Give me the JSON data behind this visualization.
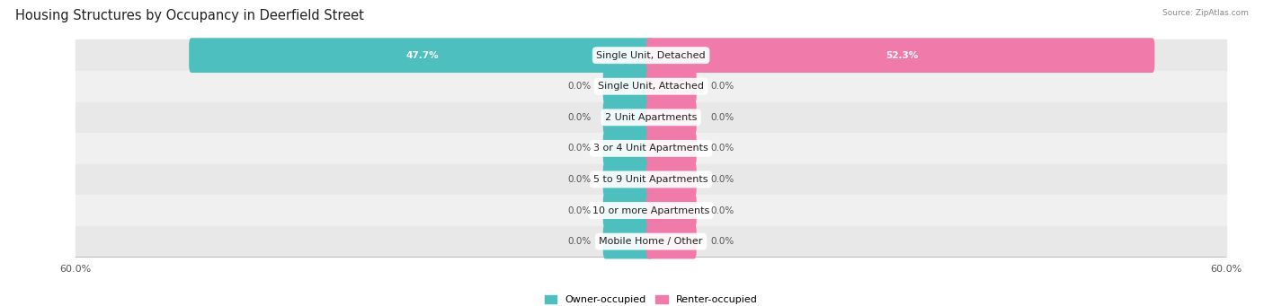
{
  "title": "Housing Structures by Occupancy in Deerfield Street",
  "source": "Source: ZipAtlas.com",
  "categories": [
    "Single Unit, Detached",
    "Single Unit, Attached",
    "2 Unit Apartments",
    "3 or 4 Unit Apartments",
    "5 to 9 Unit Apartments",
    "10 or more Apartments",
    "Mobile Home / Other"
  ],
  "owner_values": [
    47.7,
    0.0,
    0.0,
    0.0,
    0.0,
    0.0,
    0.0
  ],
  "renter_values": [
    52.3,
    0.0,
    0.0,
    0.0,
    0.0,
    0.0,
    0.0
  ],
  "owner_color": "#4dbfbf",
  "renter_color": "#f07aaa",
  "axis_limit": 60.0,
  "stub_size": 4.5,
  "bar_height": 0.62,
  "row_colors": [
    "#e8e8e8",
    "#f0f0f0"
  ],
  "title_fontsize": 10.5,
  "label_fontsize": 7.5,
  "cat_fontsize": 8,
  "tick_fontsize": 8,
  "legend_fontsize": 8
}
